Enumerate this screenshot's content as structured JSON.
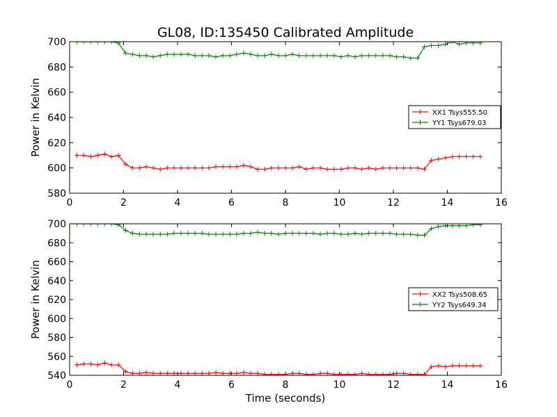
{
  "figure": {
    "title": "GL08, ID:135450 Calibrated Amplitude",
    "xlabel": "Time (seconds)"
  },
  "chart_data": [
    {
      "type": "line",
      "title": "GL08, ID:135450 Calibrated Amplitude",
      "xlabel": "",
      "ylabel": "Power in Kelvin",
      "xlim": [
        0,
        16
      ],
      "ylim": [
        580,
        700
      ],
      "xticks": [
        0,
        2,
        4,
        6,
        8,
        10,
        12,
        14,
        16
      ],
      "yticks": [
        580,
        600,
        620,
        640,
        660,
        680,
        700
      ],
      "grid": false,
      "legend": "center-right",
      "x": [
        0.27,
        0.52,
        0.78,
        1.04,
        1.3,
        1.55,
        1.81,
        2.07,
        2.33,
        2.59,
        2.84,
        3.1,
        3.36,
        3.62,
        3.87,
        4.13,
        4.39,
        4.65,
        4.91,
        5.16,
        5.42,
        5.68,
        5.94,
        6.19,
        6.45,
        6.71,
        6.97,
        7.23,
        7.48,
        7.74,
        8.0,
        8.26,
        8.51,
        8.77,
        9.03,
        9.29,
        9.55,
        9.8,
        10.06,
        10.32,
        10.58,
        10.83,
        11.09,
        11.35,
        11.61,
        11.87,
        12.12,
        12.38,
        12.64,
        12.9,
        13.15,
        13.41,
        13.67,
        13.93,
        14.19,
        14.44,
        14.7,
        14.96,
        15.22
      ],
      "series": [
        {
          "name": "XX1 Tsys555.50",
          "color": "#ff0000",
          "values": [
            610,
            610,
            609,
            610,
            611,
            609,
            610,
            603,
            600,
            600,
            601,
            600,
            599,
            600,
            600,
            600,
            600,
            600,
            600,
            600,
            601,
            601,
            601,
            601,
            602,
            601,
            599,
            599,
            600,
            600,
            600,
            600,
            601,
            599,
            600,
            600,
            599,
            599,
            599,
            600,
            600,
            599,
            600,
            599,
            600,
            600,
            600,
            600,
            600,
            600,
            599,
            606,
            607,
            608,
            609,
            609,
            609,
            609,
            609
          ]
        },
        {
          "name": "YY1 Tsys679.03",
          "color": "#008000",
          "values": [
            700,
            700,
            700,
            700,
            700,
            700,
            699,
            691,
            690,
            689,
            689,
            688,
            689,
            690,
            690,
            690,
            690,
            689,
            689,
            689,
            688,
            689,
            689,
            690,
            691,
            690,
            689,
            689,
            690,
            689,
            689,
            690,
            689,
            689,
            689,
            689,
            689,
            689,
            688,
            689,
            688,
            689,
            689,
            689,
            689,
            689,
            688,
            688,
            687,
            687,
            696,
            697,
            697,
            698,
            700,
            698,
            699,
            699,
            699
          ]
        }
      ]
    },
    {
      "type": "line",
      "title": "",
      "xlabel": "Time (seconds)",
      "ylabel": "Power in Kelvin",
      "xlim": [
        0,
        16
      ],
      "ylim": [
        540,
        700
      ],
      "xticks": [
        0,
        2,
        4,
        6,
        8,
        10,
        12,
        14,
        16
      ],
      "yticks": [
        540,
        560,
        580,
        600,
        620,
        640,
        660,
        680,
        700
      ],
      "grid": false,
      "legend": "center-right",
      "x": [
        0.27,
        0.52,
        0.78,
        1.04,
        1.3,
        1.55,
        1.81,
        2.07,
        2.33,
        2.59,
        2.84,
        3.1,
        3.36,
        3.62,
        3.87,
        4.13,
        4.39,
        4.65,
        4.91,
        5.16,
        5.42,
        5.68,
        5.94,
        6.19,
        6.45,
        6.71,
        6.97,
        7.23,
        7.48,
        7.74,
        8.0,
        8.26,
        8.51,
        8.77,
        9.03,
        9.29,
        9.55,
        9.8,
        10.06,
        10.32,
        10.58,
        10.83,
        11.09,
        11.35,
        11.61,
        11.87,
        12.12,
        12.38,
        12.64,
        12.9,
        13.15,
        13.41,
        13.67,
        13.93,
        14.19,
        14.44,
        14.7,
        14.96,
        15.22
      ],
      "series": [
        {
          "name": "XX2 Tsys508.65",
          "color": "#ff0000",
          "values": [
            551,
            552,
            552,
            551,
            553,
            551,
            551,
            544,
            542,
            542,
            543,
            542,
            542,
            542,
            542,
            542,
            542,
            542,
            542,
            542,
            543,
            542,
            542,
            542,
            543,
            542,
            542,
            541,
            541,
            541,
            541,
            542,
            542,
            541,
            541,
            542,
            542,
            541,
            541,
            541,
            541,
            542,
            541,
            541,
            541,
            541,
            542,
            542,
            541,
            541,
            541,
            549,
            550,
            549,
            550,
            550,
            550,
            550,
            550
          ]
        },
        {
          "name": "YY2 Tsys649.34",
          "color": "#008000",
          "values": [
            700,
            700,
            700,
            700,
            700,
            700,
            699,
            693,
            690,
            689,
            689,
            689,
            689,
            689,
            690,
            690,
            690,
            690,
            690,
            689,
            689,
            689,
            689,
            689,
            690,
            690,
            691,
            690,
            690,
            689,
            690,
            690,
            690,
            690,
            690,
            689,
            690,
            690,
            689,
            689,
            690,
            689,
            690,
            690,
            690,
            690,
            689,
            689,
            689,
            688,
            688,
            695,
            697,
            698,
            698,
            698,
            698,
            699,
            699
          ]
        }
      ]
    }
  ]
}
